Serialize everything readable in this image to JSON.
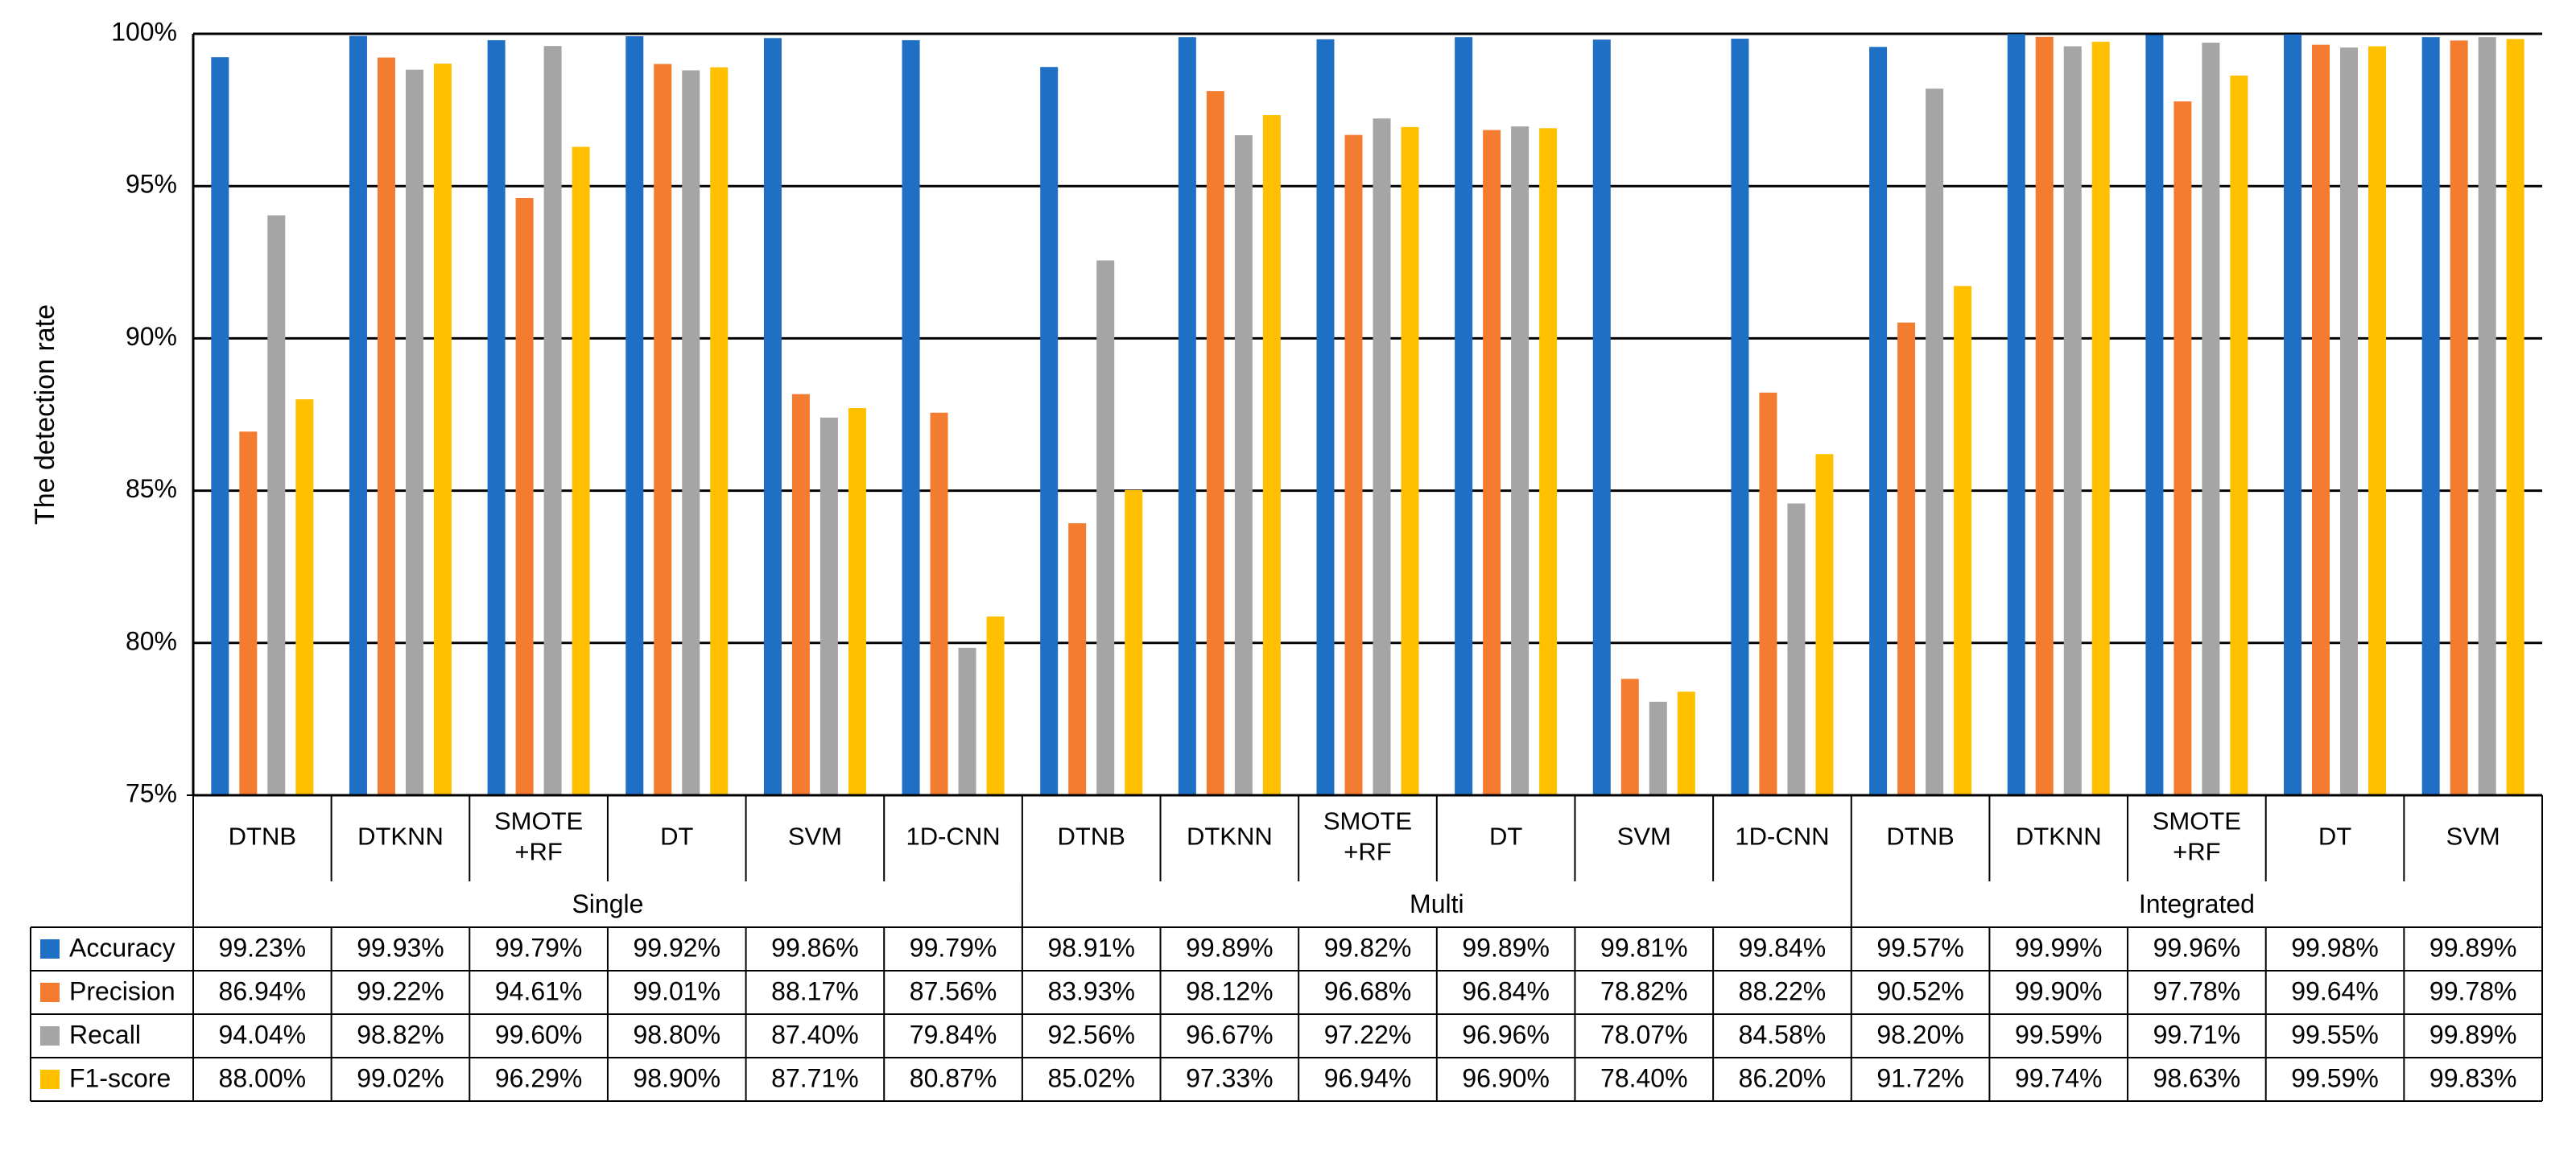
{
  "chart_data": {
    "type": "bar",
    "ylabel": "The detection rate",
    "ylim": [
      75,
      100
    ],
    "yticks": [
      75,
      80,
      85,
      90,
      95,
      100
    ],
    "ytick_labels": [
      "75%",
      "80%",
      "85%",
      "90%",
      "95%",
      "100%"
    ],
    "grid": true,
    "groups": [
      {
        "name": "Single",
        "categories": [
          "DTNB",
          "DTKNN",
          "SMOTE\n+RF",
          "DT",
          "SVM",
          "1D-CNN"
        ]
      },
      {
        "name": "Multi",
        "categories": [
          "DTNB",
          "DTKNN",
          "SMOTE\n+RF",
          "DT",
          "SVM",
          "1D-CNN"
        ]
      },
      {
        "name": "Integrated",
        "categories": [
          "DTNB",
          "DTKNN",
          "SMOTE\n+RF",
          "DT",
          "SVM"
        ]
      }
    ],
    "series": [
      {
        "name": "Accuracy",
        "color": "#1f6fc5",
        "values": [
          99.23,
          99.93,
          99.79,
          99.92,
          99.86,
          99.79,
          98.91,
          99.89,
          99.82,
          99.89,
          99.81,
          99.84,
          99.57,
          99.99,
          99.96,
          99.98,
          99.89
        ],
        "labels": [
          "99.23%",
          "99.93%",
          "99.79%",
          "99.92%",
          "99.86%",
          "99.79%",
          "98.91%",
          "99.89%",
          "99.82%",
          "99.89%",
          "99.81%",
          "99.84%",
          "99.57%",
          "99.99%",
          "99.96%",
          "99.98%",
          "99.89%"
        ]
      },
      {
        "name": "Precision",
        "color": "#f47c30",
        "values": [
          86.94,
          99.22,
          94.61,
          99.01,
          88.17,
          87.56,
          83.93,
          98.12,
          96.68,
          96.84,
          78.82,
          88.22,
          90.52,
          99.9,
          97.78,
          99.64,
          99.78
        ],
        "labels": [
          "86.94%",
          "99.22%",
          "94.61%",
          "99.01%",
          "88.17%",
          "87.56%",
          "83.93%",
          "98.12%",
          "96.68%",
          "96.84%",
          "78.82%",
          "88.22%",
          "90.52%",
          "99.90%",
          "97.78%",
          "99.64%",
          "99.78%"
        ]
      },
      {
        "name": "Recall",
        "color": "#a5a5a5",
        "values": [
          94.04,
          98.82,
          99.6,
          98.8,
          87.4,
          79.84,
          92.56,
          96.67,
          97.22,
          96.96,
          78.07,
          84.58,
          98.2,
          99.59,
          99.71,
          99.55,
          99.89
        ],
        "labels": [
          "94.04%",
          "98.82%",
          "99.60%",
          "98.80%",
          "87.40%",
          "79.84%",
          "92.56%",
          "96.67%",
          "97.22%",
          "96.96%",
          "78.07%",
          "84.58%",
          "98.20%",
          "99.59%",
          "99.71%",
          "99.55%",
          "99.89%"
        ]
      },
      {
        "name": "F1-score",
        "color": "#ffc000",
        "values": [
          88.0,
          99.02,
          96.29,
          98.9,
          87.71,
          80.87,
          85.02,
          97.33,
          96.94,
          96.9,
          78.4,
          86.2,
          91.72,
          99.74,
          98.63,
          99.59,
          99.83
        ],
        "labels": [
          "88.00%",
          "99.02%",
          "96.29%",
          "98.90%",
          "87.71%",
          "80.87%",
          "85.02%",
          "97.33%",
          "96.94%",
          "96.90%",
          "78.40%",
          "86.20%",
          "91.72%",
          "99.74%",
          "98.63%",
          "99.59%",
          "99.83%"
        ]
      }
    ]
  }
}
